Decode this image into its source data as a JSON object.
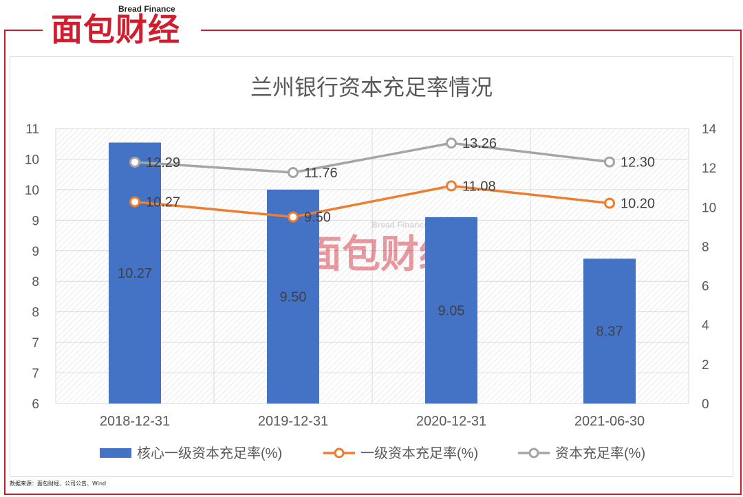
{
  "brand": {
    "logo_cn": "面包财经",
    "logo_en": "Bread Finance",
    "watermark_en": "Bread Finance",
    "watermark_cn": "面包财经"
  },
  "source_note": "数据来源：面包财经、公司公告、Wind",
  "colors": {
    "bar": "#4472c4",
    "tier1": "#ed7d31",
    "total": "#a5a5a5",
    "frame": "#c21f2e"
  },
  "chart_data": {
    "type": "bar",
    "title": "兰州银行资本充足率情况",
    "categories": [
      "2018-12-31",
      "2019-12-31",
      "2020-12-31",
      "2021-06-30"
    ],
    "left_axis": {
      "ticks": [
        "11",
        "10",
        "10",
        "9",
        "9",
        "8",
        "8",
        "7",
        "7",
        "6"
      ],
      "ylim": [
        6,
        10.5
      ]
    },
    "right_axis": {
      "ticks": [
        "14",
        "12",
        "10",
        "8",
        "6",
        "4",
        "2",
        "0"
      ],
      "ylim": [
        0,
        14
      ]
    },
    "grid": true,
    "legend_position": "bottom",
    "series": [
      {
        "name": "核心一级资本充足率(%)",
        "type": "bar",
        "axis": "left",
        "values": [
          10.27,
          9.5,
          9.05,
          8.37
        ],
        "labels": [
          "10.27",
          "9.50",
          "9.05",
          "8.37"
        ]
      },
      {
        "name": "一级资本充足率(%)",
        "type": "line",
        "axis": "right",
        "values": [
          10.27,
          9.5,
          11.08,
          10.2
        ],
        "labels": [
          "10.27",
          "9.50",
          "11.08",
          "10.20"
        ]
      },
      {
        "name": "资本充足率(%)",
        "type": "line",
        "axis": "right",
        "values": [
          12.29,
          11.76,
          13.26,
          12.3
        ],
        "labels": [
          "12.29",
          "11.76",
          "13.26",
          "12.30"
        ]
      }
    ]
  }
}
